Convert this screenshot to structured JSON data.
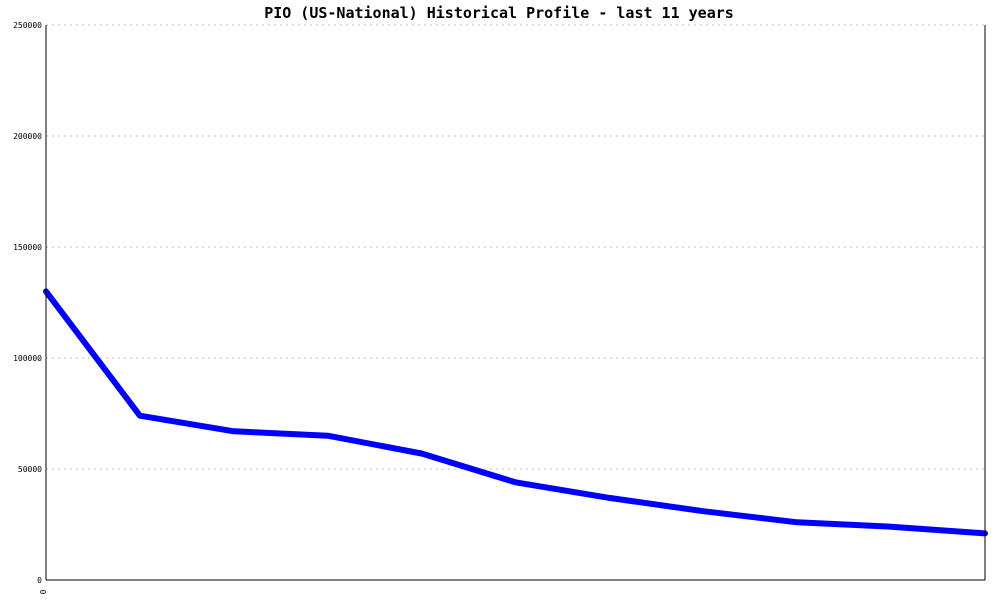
{
  "chart_data": {
    "type": "line",
    "title": "PIO (US-National) Historical Profile - last 11 years",
    "xlabel": "",
    "ylabel": "",
    "ylim": [
      0,
      250000
    ],
    "y_ticks": [
      "0",
      "50000",
      "100000",
      "150000",
      "200000",
      "250000"
    ],
    "x_ticks": [
      "0"
    ],
    "grid": true,
    "line_color": "#0000ff",
    "series": [
      {
        "values": [
          130000,
          74000,
          67000,
          65000,
          57000,
          44000,
          37000,
          31000,
          26000,
          24000,
          21000
        ]
      }
    ]
  }
}
